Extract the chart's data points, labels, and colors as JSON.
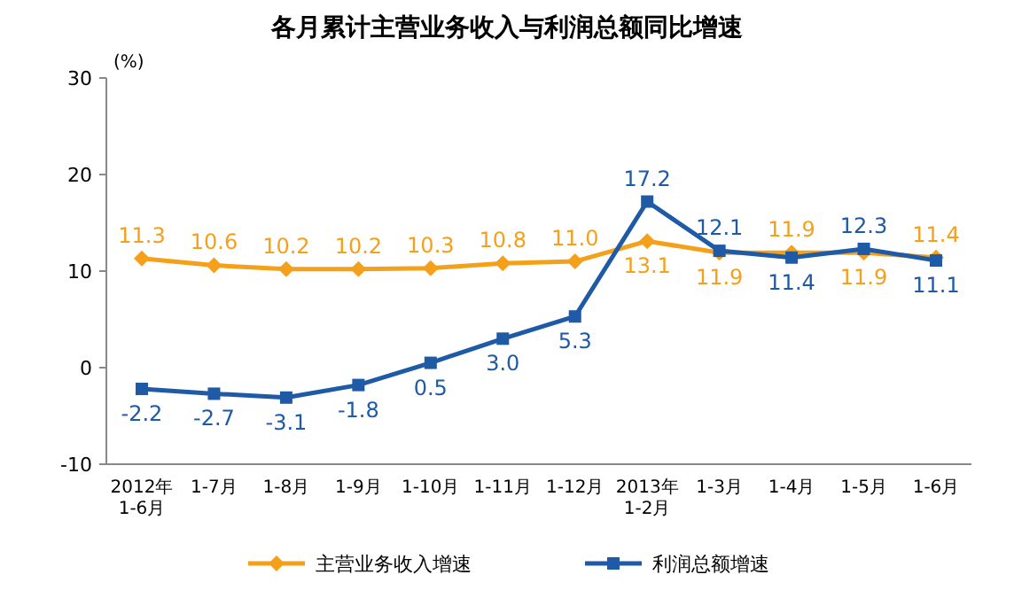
{
  "chart_data": {
    "type": "line",
    "title": "各月累计主营业务收入与利润总额同比增速",
    "ylabel": "(%)",
    "categories": [
      "2012年\n1-6月",
      "1-7月",
      "1-8月",
      "1-9月",
      "1-10月",
      "1-11月",
      "1-12月",
      "2013年\n1-2月",
      "1-3月",
      "1-4月",
      "1-5月",
      "1-6月"
    ],
    "series": [
      {
        "name": "主营业务收入增速",
        "color": "#f5a01a",
        "marker": "diamond",
        "values": [
          11.3,
          10.6,
          10.2,
          10.2,
          10.3,
          10.8,
          11.0,
          13.1,
          11.9,
          11.9,
          11.9,
          11.4
        ],
        "value_labels": [
          "11.3",
          "10.6",
          "10.2",
          "10.2",
          "10.3",
          "10.8",
          "11.0",
          "13.1",
          "11.9",
          "11.9",
          "11.9",
          "11.4"
        ]
      },
      {
        "name": "利润总额增速",
        "color": "#1f5aa6",
        "marker": "square",
        "values": [
          -2.2,
          -2.7,
          -3.1,
          -1.8,
          0.5,
          3.0,
          5.3,
          17.2,
          12.1,
          11.4,
          12.3,
          11.1
        ],
        "value_labels": [
          "-2.2",
          "-2.7",
          "-3.1",
          "-1.8",
          "0.5",
          "3.0",
          "5.3",
          "17.2",
          "12.1",
          "11.4",
          "12.3",
          "11.1"
        ]
      }
    ],
    "ylim": [
      -10,
      30
    ],
    "yticks": [
      -10,
      0,
      10,
      20,
      30
    ],
    "legend": "bottom",
    "grid": false
  }
}
